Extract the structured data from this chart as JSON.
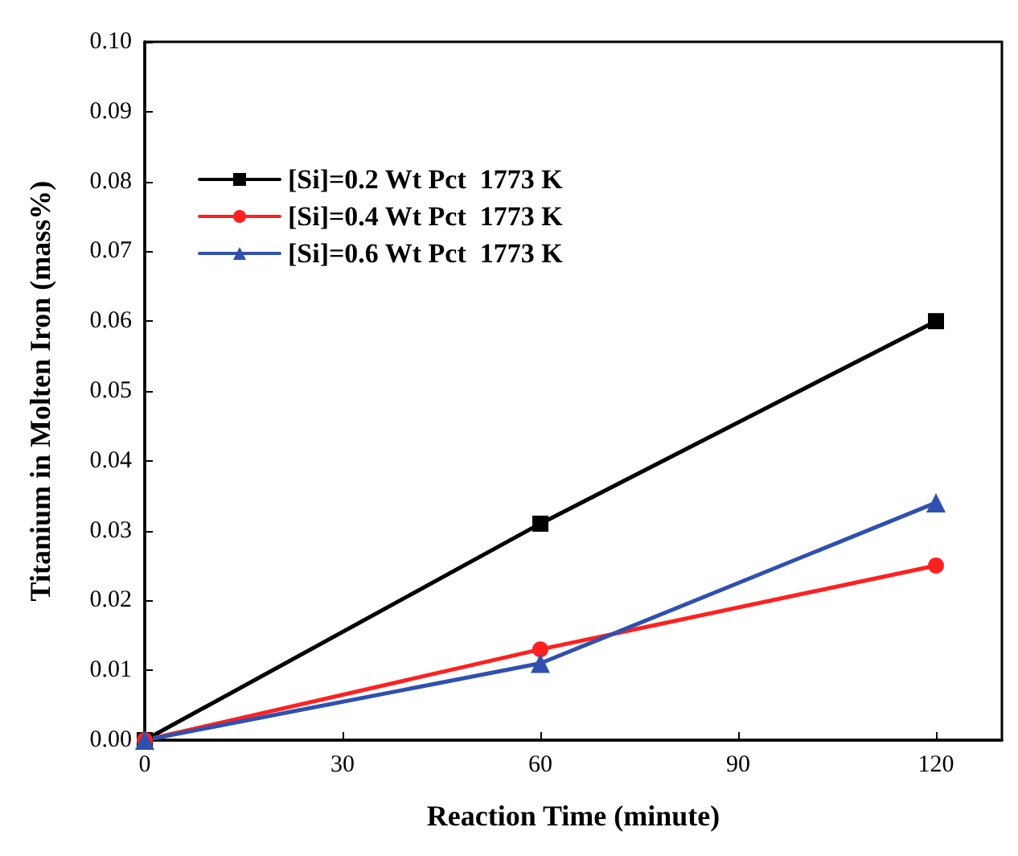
{
  "chart_data": {
    "type": "line",
    "xlabel": "Reaction Time (minute)",
    "ylabel": "Titanium in Molten Iron (mass%)",
    "xlim": [
      0,
      130
    ],
    "xticks": [
      0,
      30,
      60,
      90,
      120
    ],
    "ylim": [
      0,
      0.1
    ],
    "yticks": [
      {
        "value": 0,
        "label": "0.00"
      },
      {
        "value": 0.01,
        "label": "0.01"
      },
      {
        "value": 0.02,
        "label": "0.02"
      },
      {
        "value": 0.03,
        "label": "0.03"
      },
      {
        "value": 0.04,
        "label": "0.04"
      },
      {
        "value": 0.05,
        "label": "0.05"
      },
      {
        "value": 0.06,
        "label": "0.06"
      },
      {
        "value": 0.07,
        "label": "0.07"
      },
      {
        "value": 0.08,
        "label": "0.08"
      },
      {
        "value": 0.09,
        "label": "0.09"
      },
      {
        "value": 0.1,
        "label": "0.10"
      }
    ],
    "grid": false,
    "legend": "top left",
    "line_style": "solid",
    "series": [
      {
        "name": "[Si]=0.2 Wt Pct  1773 K",
        "color": "#000000",
        "marker": "square",
        "x": [
          0,
          60,
          120
        ],
        "values": [
          0,
          0.031,
          0.06
        ]
      },
      {
        "name": "[Si]=0.4 Wt Pct  1773 K",
        "color": "#ff2020",
        "marker": "circle",
        "x": [
          0,
          60,
          120
        ],
        "values": [
          0,
          0.013,
          0.025
        ]
      },
      {
        "name": "[Si]=0.6 Wt Pct  1773 K",
        "color": "#3050b0",
        "marker": "triangle",
        "x": [
          0,
          60,
          120
        ],
        "values": [
          0,
          0.011,
          0.034
        ]
      }
    ]
  }
}
